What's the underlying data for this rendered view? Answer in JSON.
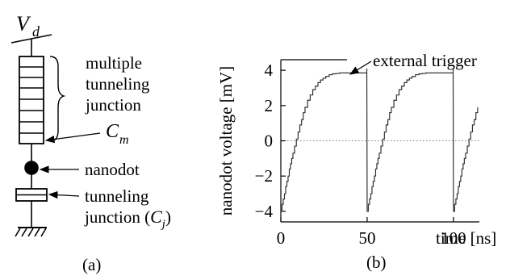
{
  "circuit": {
    "supply_label": "V",
    "supply_sub": "d",
    "mtj_label_lines": [
      "multiple",
      "tunneling",
      "junction"
    ],
    "cm_label": "C",
    "cm_sub": "m",
    "nanodot_label": "nanodot",
    "tj_label_line1": "tunneling",
    "tj_label_line2_prefix": "junction (",
    "tj_cap": "C",
    "tj_cap_sub": "j",
    "tj_label_line2_suffix": ")",
    "panel_label": "(a)"
  },
  "plot": {
    "panel_label": "(b)",
    "annotation": "external trigger",
    "dotted_zero_line": true
  },
  "chart_data": {
    "type": "line",
    "xlabel": "time [ns]",
    "ylabel": "nanodot voltage [mV]",
    "xlim": [
      0,
      115
    ],
    "ylim": [
      -4.6,
      4.6
    ],
    "xticks": [
      "0",
      "50",
      "100"
    ],
    "yticks": [
      "-4",
      "-2",
      "0",
      "2",
      "4"
    ],
    "series": [
      {
        "x": [
          0,
          0.7,
          1.4,
          2.1,
          2.8,
          3.5,
          4.2,
          4.9,
          5.6,
          6.3,
          7.0,
          8.0,
          9.0,
          10.0,
          11.0,
          12.0,
          13.0,
          14.0,
          15.5,
          17.0,
          18.5,
          20.0,
          21.5,
          23.0,
          24.5,
          26.0,
          28.0,
          30.0,
          32.0,
          34.0,
          37.0,
          40.0,
          44.0,
          48.0,
          49.8,
          50.0,
          50.7,
          51.4,
          52.1,
          52.8,
          53.5,
          54.2,
          54.9,
          55.6,
          56.3,
          57.0,
          58.0,
          59.0,
          60.0,
          61.0,
          62.0,
          63.0,
          64.0,
          65.5,
          67.0,
          68.5,
          70.0,
          71.5,
          73.0,
          74.5,
          76.0,
          78.0,
          80.0,
          82.0,
          84.0,
          87.0,
          90.0,
          94.0,
          98.0,
          99.8,
          100.0,
          100.7,
          101.4,
          102.1,
          102.8,
          103.5,
          104.2,
          104.9,
          105.6,
          106.3,
          107.0,
          108.0,
          109.0,
          110.0,
          111.0,
          112.0,
          113.0,
          114.0
        ],
        "y": [
          -4.0,
          -3.6,
          -3.3,
          -3.0,
          -2.6,
          -2.3,
          -2.0,
          -1.6,
          -1.3,
          -1.0,
          -0.7,
          -0.3,
          0.1,
          0.5,
          0.9,
          1.2,
          1.6,
          1.9,
          2.3,
          2.6,
          2.9,
          3.1,
          3.3,
          3.45,
          3.55,
          3.65,
          3.75,
          3.8,
          3.82,
          3.85,
          3.85,
          3.85,
          3.85,
          3.85,
          4.1,
          -4.0,
          -3.6,
          -3.3,
          -3.0,
          -2.6,
          -2.3,
          -2.0,
          -1.6,
          -1.3,
          -1.0,
          -0.7,
          -0.3,
          0.1,
          0.5,
          0.9,
          1.2,
          1.6,
          1.9,
          2.3,
          2.6,
          2.9,
          3.1,
          3.3,
          3.45,
          3.55,
          3.65,
          3.75,
          3.8,
          3.82,
          3.85,
          3.85,
          3.85,
          3.85,
          3.85,
          4.1,
          -4.0,
          -3.6,
          -3.3,
          -3.0,
          -2.6,
          -2.3,
          -2.0,
          -1.6,
          -1.3,
          -1.0,
          -0.7,
          -0.3,
          0.1,
          0.5,
          0.9,
          1.2,
          1.6,
          1.9
        ]
      }
    ]
  }
}
